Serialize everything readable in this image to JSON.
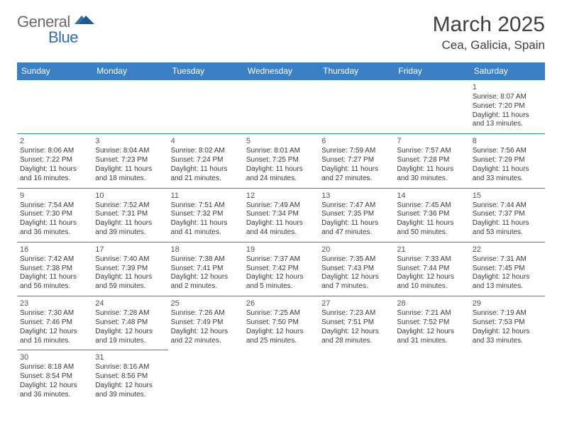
{
  "brand": {
    "part1": "General",
    "part2": "Blue"
  },
  "title": "March 2025",
  "location": "Cea, Galicia, Spain",
  "colors": {
    "headerBg": "#3b7fc4",
    "headerFg": "#ffffff",
    "border": "#3b7fc4",
    "text": "#3a3a3a"
  },
  "weekdays": [
    "Sunday",
    "Monday",
    "Tuesday",
    "Wednesday",
    "Thursday",
    "Friday",
    "Saturday"
  ],
  "weeks": [
    [
      null,
      null,
      null,
      null,
      null,
      null,
      {
        "n": "1",
        "sr": "8:07 AM",
        "ss": "7:20 PM",
        "d1": "11 hours",
        "d2": "and 13 minutes."
      }
    ],
    [
      {
        "n": "2",
        "sr": "8:06 AM",
        "ss": "7:22 PM",
        "d1": "11 hours",
        "d2": "and 16 minutes."
      },
      {
        "n": "3",
        "sr": "8:04 AM",
        "ss": "7:23 PM",
        "d1": "11 hours",
        "d2": "and 18 minutes."
      },
      {
        "n": "4",
        "sr": "8:02 AM",
        "ss": "7:24 PM",
        "d1": "11 hours",
        "d2": "and 21 minutes."
      },
      {
        "n": "5",
        "sr": "8:01 AM",
        "ss": "7:25 PM",
        "d1": "11 hours",
        "d2": "and 24 minutes."
      },
      {
        "n": "6",
        "sr": "7:59 AM",
        "ss": "7:27 PM",
        "d1": "11 hours",
        "d2": "and 27 minutes."
      },
      {
        "n": "7",
        "sr": "7:57 AM",
        "ss": "7:28 PM",
        "d1": "11 hours",
        "d2": "and 30 minutes."
      },
      {
        "n": "8",
        "sr": "7:56 AM",
        "ss": "7:29 PM",
        "d1": "11 hours",
        "d2": "and 33 minutes."
      }
    ],
    [
      {
        "n": "9",
        "sr": "7:54 AM",
        "ss": "7:30 PM",
        "d1": "11 hours",
        "d2": "and 36 minutes."
      },
      {
        "n": "10",
        "sr": "7:52 AM",
        "ss": "7:31 PM",
        "d1": "11 hours",
        "d2": "and 39 minutes."
      },
      {
        "n": "11",
        "sr": "7:51 AM",
        "ss": "7:32 PM",
        "d1": "11 hours",
        "d2": "and 41 minutes."
      },
      {
        "n": "12",
        "sr": "7:49 AM",
        "ss": "7:34 PM",
        "d1": "11 hours",
        "d2": "and 44 minutes."
      },
      {
        "n": "13",
        "sr": "7:47 AM",
        "ss": "7:35 PM",
        "d1": "11 hours",
        "d2": "and 47 minutes."
      },
      {
        "n": "14",
        "sr": "7:45 AM",
        "ss": "7:36 PM",
        "d1": "11 hours",
        "d2": "and 50 minutes."
      },
      {
        "n": "15",
        "sr": "7:44 AM",
        "ss": "7:37 PM",
        "d1": "11 hours",
        "d2": "and 53 minutes."
      }
    ],
    [
      {
        "n": "16",
        "sr": "7:42 AM",
        "ss": "7:38 PM",
        "d1": "11 hours",
        "d2": "and 56 minutes."
      },
      {
        "n": "17",
        "sr": "7:40 AM",
        "ss": "7:39 PM",
        "d1": "11 hours",
        "d2": "and 59 minutes."
      },
      {
        "n": "18",
        "sr": "7:38 AM",
        "ss": "7:41 PM",
        "d1": "12 hours",
        "d2": "and 2 minutes."
      },
      {
        "n": "19",
        "sr": "7:37 AM",
        "ss": "7:42 PM",
        "d1": "12 hours",
        "d2": "and 5 minutes."
      },
      {
        "n": "20",
        "sr": "7:35 AM",
        "ss": "7:43 PM",
        "d1": "12 hours",
        "d2": "and 7 minutes."
      },
      {
        "n": "21",
        "sr": "7:33 AM",
        "ss": "7:44 PM",
        "d1": "12 hours",
        "d2": "and 10 minutes."
      },
      {
        "n": "22",
        "sr": "7:31 AM",
        "ss": "7:45 PM",
        "d1": "12 hours",
        "d2": "and 13 minutes."
      }
    ],
    [
      {
        "n": "23",
        "sr": "7:30 AM",
        "ss": "7:46 PM",
        "d1": "12 hours",
        "d2": "and 16 minutes."
      },
      {
        "n": "24",
        "sr": "7:28 AM",
        "ss": "7:48 PM",
        "d1": "12 hours",
        "d2": "and 19 minutes."
      },
      {
        "n": "25",
        "sr": "7:26 AM",
        "ss": "7:49 PM",
        "d1": "12 hours",
        "d2": "and 22 minutes."
      },
      {
        "n": "26",
        "sr": "7:25 AM",
        "ss": "7:50 PM",
        "d1": "12 hours",
        "d2": "and 25 minutes."
      },
      {
        "n": "27",
        "sr": "7:23 AM",
        "ss": "7:51 PM",
        "d1": "12 hours",
        "d2": "and 28 minutes."
      },
      {
        "n": "28",
        "sr": "7:21 AM",
        "ss": "7:52 PM",
        "d1": "12 hours",
        "d2": "and 31 minutes."
      },
      {
        "n": "29",
        "sr": "7:19 AM",
        "ss": "7:53 PM",
        "d1": "12 hours",
        "d2": "and 33 minutes."
      }
    ],
    [
      {
        "n": "30",
        "sr": "8:18 AM",
        "ss": "8:54 PM",
        "d1": "12 hours",
        "d2": "and 36 minutes."
      },
      {
        "n": "31",
        "sr": "8:16 AM",
        "ss": "8:56 PM",
        "d1": "12 hours",
        "d2": "and 39 minutes."
      },
      null,
      null,
      null,
      null,
      null
    ]
  ],
  "labels": {
    "sunrise": "Sunrise: ",
    "sunset": "Sunset: ",
    "daylight": "Daylight: "
  }
}
